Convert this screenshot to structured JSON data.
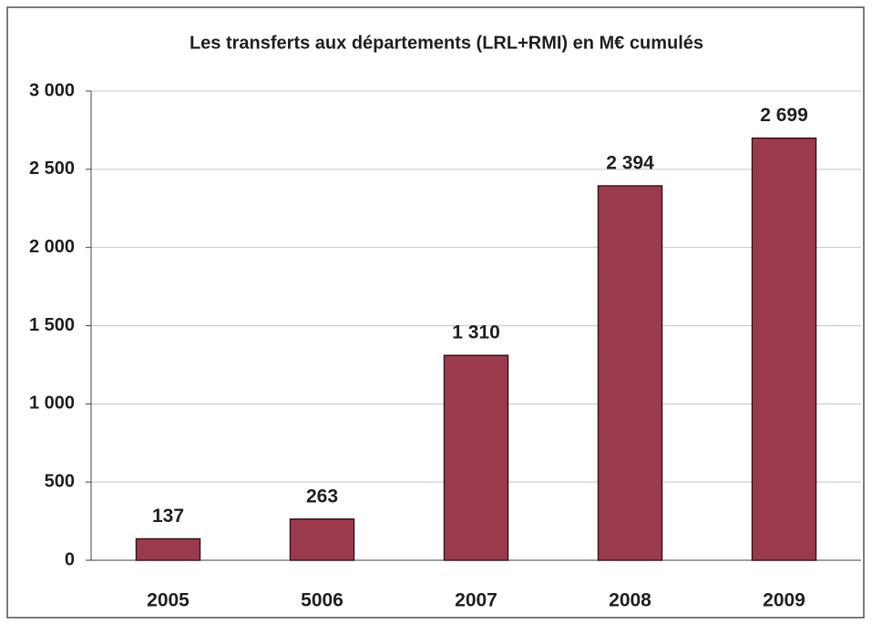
{
  "chart_data": {
    "type": "bar",
    "title": "Les transferts aux départements (LRL+RMI) en M€ cumulés",
    "categories": [
      "2005",
      "5006",
      "2007",
      "2008",
      "2009"
    ],
    "values": [
      137,
      263,
      1310,
      2394,
      2699
    ],
    "value_labels": [
      "137",
      "263",
      "1 310",
      "2 394",
      "2 699"
    ],
    "color": "#9b3a4c",
    "ylim": [
      0,
      3000
    ],
    "yticks": [
      0,
      500,
      {
        "value": 1000,
        "label": "1 000"
      },
      {
        "value": 1500,
        "label": "1 500"
      },
      {
        "value": 2000,
        "label": "2 000"
      },
      {
        "value": 2500,
        "label": "2 500"
      },
      {
        "value": 3000,
        "label": "3 000"
      }
    ],
    "grid": true
  }
}
